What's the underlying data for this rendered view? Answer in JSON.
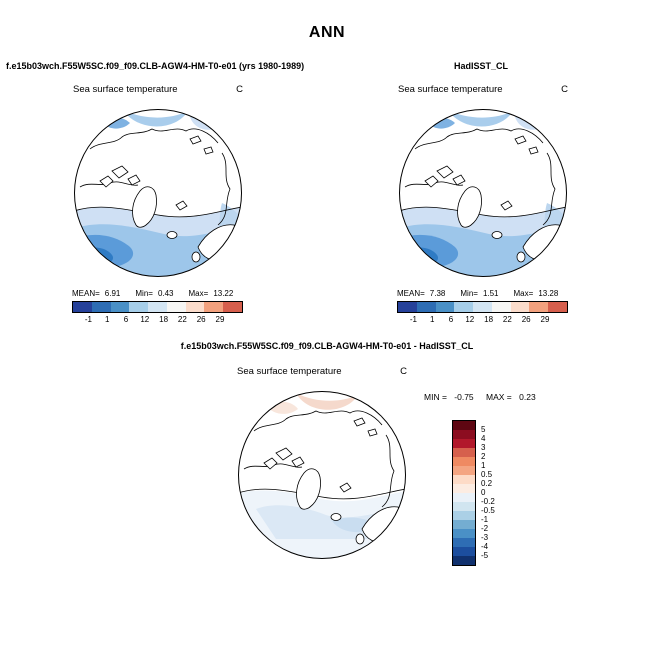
{
  "title": "ANN",
  "panels": {
    "model": {
      "header": "f.e15b03wch.F55W5SC.f09_f09.CLB-AGW4-HM-T0-e01 (yrs 1980-1989)",
      "field": "Sea surface temperature",
      "units": "C",
      "stats": {
        "mean_label": "MEAN=",
        "mean": "6.91",
        "min_label": "Min=",
        "min": "0.43",
        "max_label": "Max=",
        "max": "13.22"
      }
    },
    "obs": {
      "header": "HadISST_CL",
      "field": "Sea surface temperature",
      "units": "C",
      "stats": {
        "mean_label": "MEAN=",
        "mean": "7.38",
        "min_label": "Min=",
        "min": "1.51",
        "max_label": "Max=",
        "max": "13.28"
      }
    },
    "diff": {
      "header": "f.e15b03wch.F55W5SC.f09_f09.CLB-AGW4-HM-T0-e01 - HadISST_CL",
      "field": "Sea surface temperature",
      "units": "C",
      "min_label": "MIN =",
      "min_value": "-0.75",
      "max_label": "MAX =",
      "max_value": "0.23"
    }
  },
  "colorbars": {
    "sst": {
      "ticks": [
        "-1",
        "1",
        "6",
        "12",
        "18",
        "22",
        "26",
        "29"
      ],
      "colors": [
        "#26419a",
        "#2e6db4",
        "#4a90c6",
        "#a6cee9",
        "#d3e5f3",
        "#f6f6f4",
        "#fbdccb",
        "#f2a17e",
        "#d65f4d"
      ]
    },
    "diff": {
      "labels": [
        "5",
        "4",
        "3",
        "2",
        "1",
        "0.5",
        "0.2",
        "0",
        "-0.2",
        "-0.5",
        "-1",
        "-2",
        "-3",
        "-4",
        "-5"
      ],
      "colors": [
        "#5e0612",
        "#8c0d20",
        "#b2182b",
        "#d6604d",
        "#ef8a62",
        "#f4a582",
        "#fddbc7",
        "#fcece2",
        "#eaf1f8",
        "#d1e5f0",
        "#abd0e6",
        "#74add1",
        "#4a90c6",
        "#2e6db4",
        "#1c4e9e",
        "#10316e"
      ]
    }
  },
  "chart_data": [
    {
      "type": "heatmap",
      "panel": "top-left",
      "title": "Sea surface temperature",
      "units": "C",
      "projection": "north polar stereographic",
      "source": "f.e15b03wch.F55W5SC.f09_f09.CLB-AGW4-HM-T0-e01 (yrs 1980-1989)",
      "stats": {
        "mean": 6.91,
        "min": 0.43,
        "max": 13.22
      },
      "contour_levels": [
        -1,
        1,
        6,
        12,
        18,
        22,
        26,
        29
      ],
      "legend_position": "below"
    },
    {
      "type": "heatmap",
      "panel": "top-right",
      "title": "Sea surface temperature",
      "units": "C",
      "projection": "north polar stereographic",
      "source": "HadISST_CL",
      "stats": {
        "mean": 7.38,
        "min": 1.51,
        "max": 13.28
      },
      "contour_levels": [
        -1,
        1,
        6,
        12,
        18,
        22,
        26,
        29
      ],
      "legend_position": "below"
    },
    {
      "type": "heatmap",
      "panel": "bottom-center",
      "title": "Sea surface temperature difference",
      "units": "C",
      "projection": "north polar stereographic",
      "source": "f.e15b03wch.F55W5SC.f09_f09.CLB-AGW4-HM-T0-e01 - HadISST_CL",
      "stats": {
        "min": -0.75,
        "max": 0.23
      },
      "contour_levels": [
        -5,
        -4,
        -3,
        -2,
        -1,
        -0.5,
        -0.2,
        0,
        0.2,
        0.5,
        1,
        2,
        3,
        4,
        5
      ],
      "legend_position": "right"
    }
  ]
}
